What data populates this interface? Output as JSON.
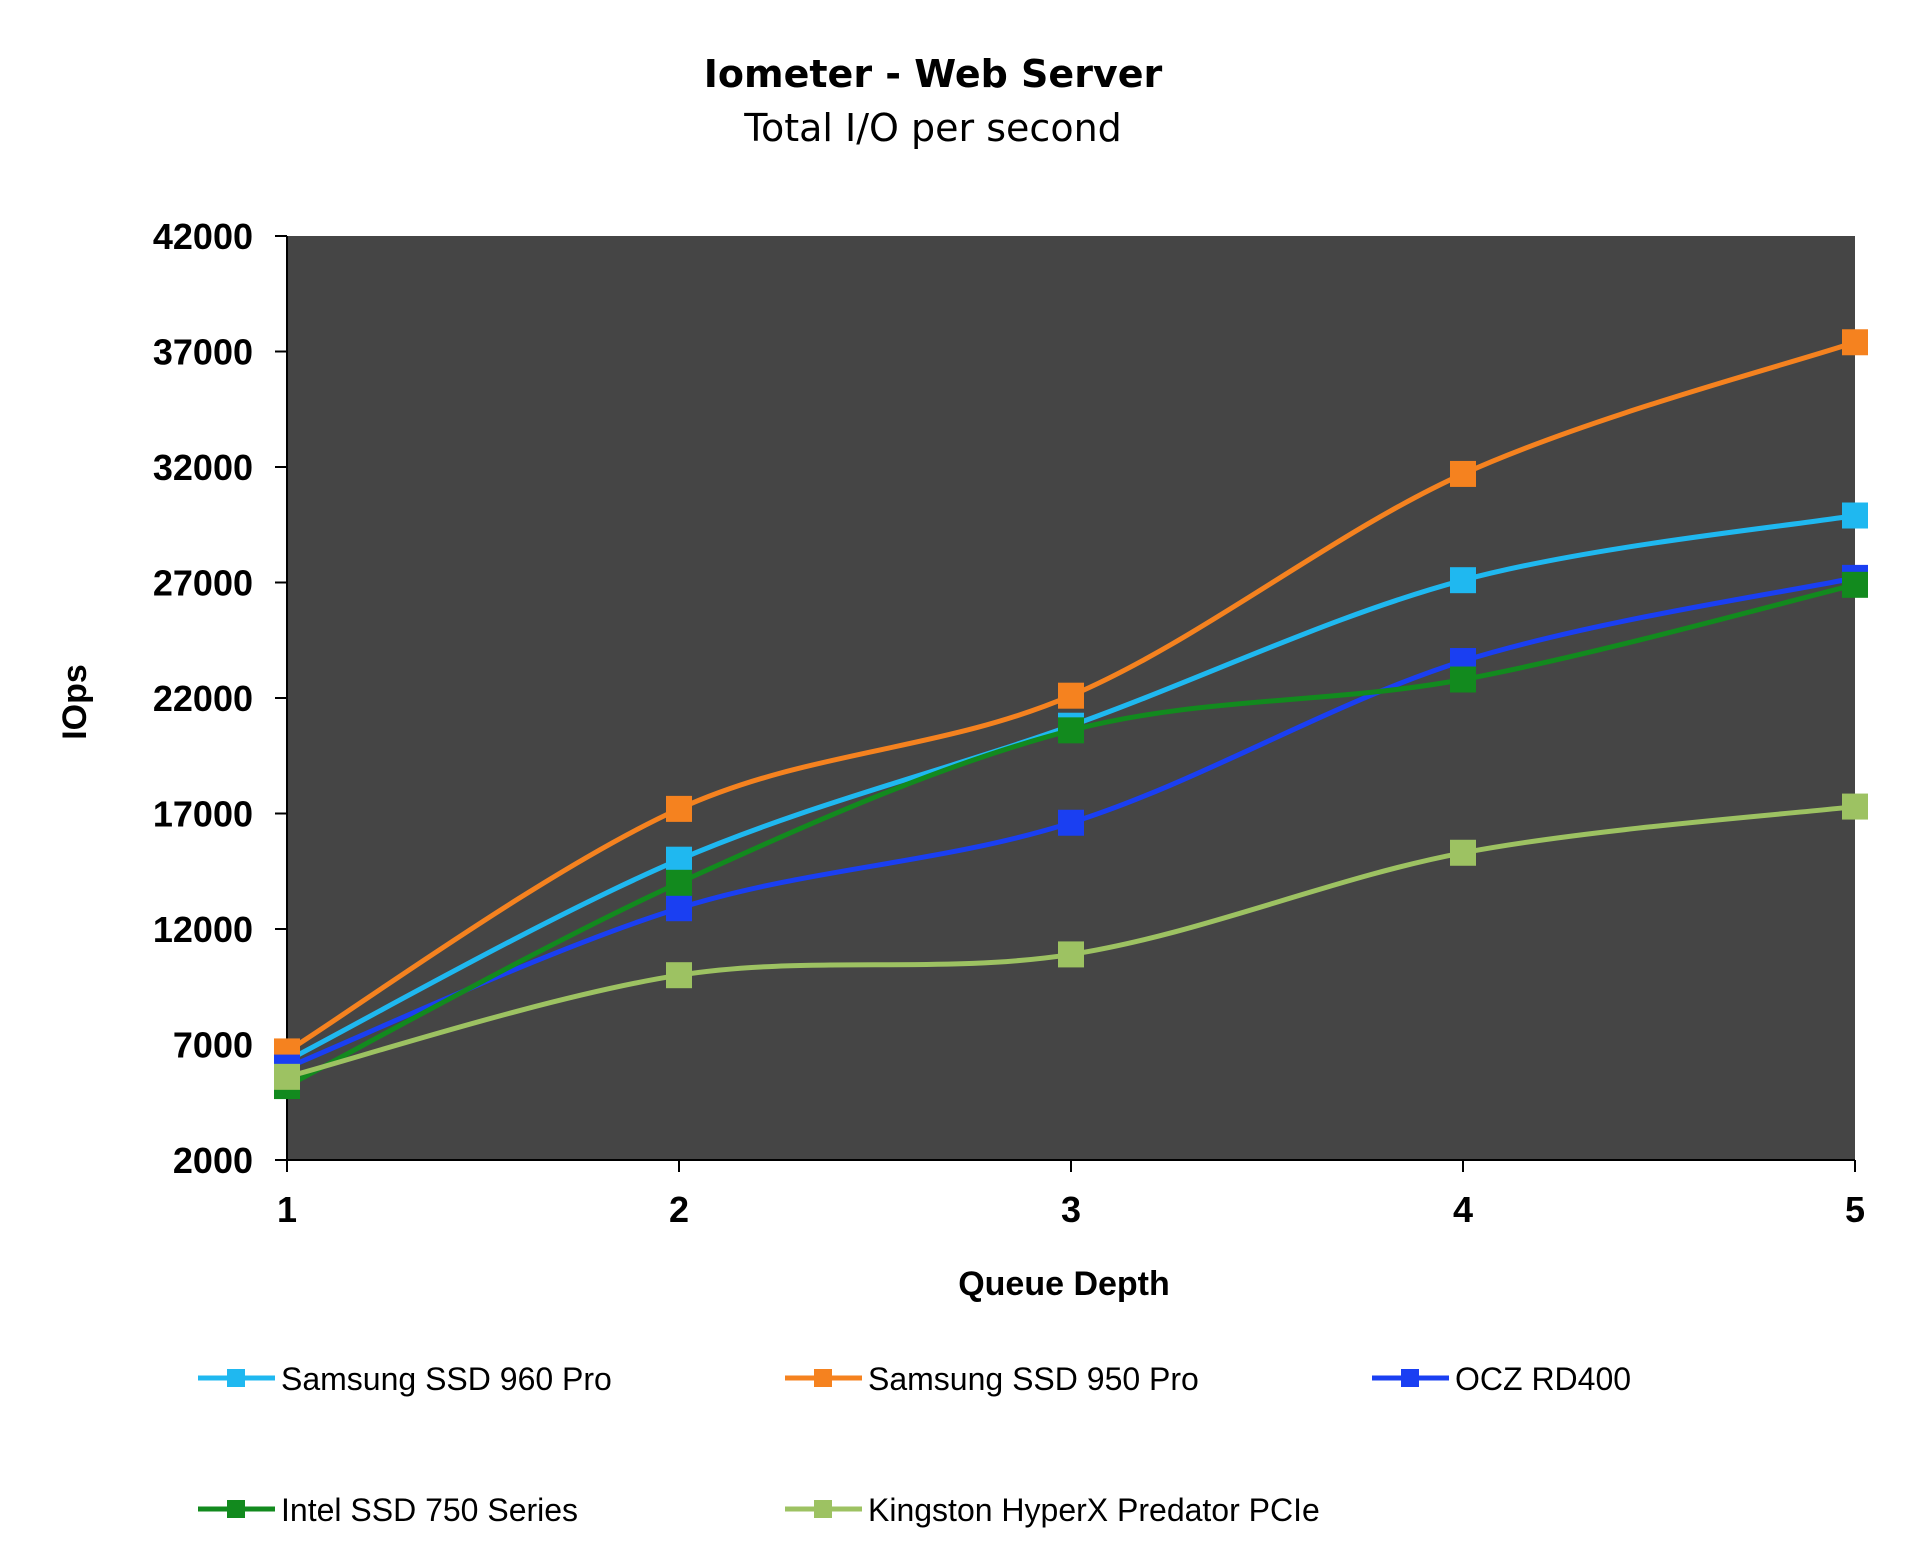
{
  "chart_data": {
    "type": "line",
    "title": "Iometer - Web Server",
    "subtitle": "Total I/O per second",
    "xlabel": "Queue Depth",
    "ylabel": "IOps",
    "x": [
      1,
      2,
      3,
      4,
      5
    ],
    "xlim": [
      1,
      5
    ],
    "ylim": [
      2000,
      42000
    ],
    "yticks": [
      2000,
      7000,
      12000,
      17000,
      22000,
      27000,
      32000,
      37000,
      42000
    ],
    "grid": false,
    "plot_background": "#454545",
    "legend_position": "bottom",
    "smoothed": true,
    "series": [
      {
        "name": "Samsung SSD 960 Pro",
        "color": "#1fb8f0",
        "values": [
          6300,
          15000,
          20800,
          27100,
          29900
        ]
      },
      {
        "name": "Samsung SSD 950 Pro",
        "color": "#f5821f",
        "values": [
          6700,
          17200,
          22100,
          31700,
          37400
        ]
      },
      {
        "name": "OCZ RD400",
        "color": "#1a3ff2",
        "values": [
          6000,
          12900,
          16600,
          23600,
          27200
        ]
      },
      {
        "name": "Intel SSD 750 Series",
        "color": "#128a1e",
        "values": [
          5200,
          14000,
          20600,
          22800,
          26900
        ]
      },
      {
        "name": "Kingston HyperX Predator PCIe",
        "color": "#9dc262",
        "values": [
          5600,
          10000,
          10900,
          15300,
          17300
        ]
      }
    ]
  }
}
